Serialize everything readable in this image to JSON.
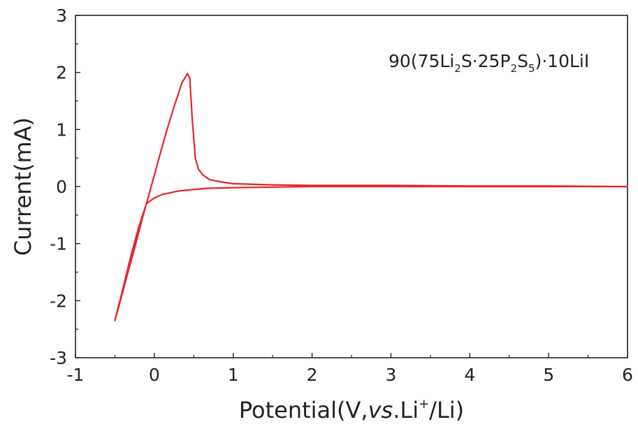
{
  "chart_data": {
    "type": "line",
    "xlabel": {
      "prefix": "Potential(V,",
      "vs": "vs",
      "mid": ".Li",
      "sup": "+",
      "suffix": "/Li)"
    },
    "ylabel": "Current(mA)",
    "xlim": [
      -1,
      6
    ],
    "ylim": [
      -3,
      3
    ],
    "x_ticks": [
      "-1",
      "0",
      "1",
      "2",
      "3",
      "4",
      "5",
      "6"
    ],
    "y_ticks": [
      "-3",
      "-2",
      "-1",
      "0",
      "1",
      "2",
      "3"
    ],
    "grid": false,
    "annotation": {
      "parts": [
        "90(75Li",
        "2",
        "S·25P",
        "2",
        "S",
        "5",
        ")·10LiI"
      ]
    },
    "series": [
      {
        "color": "#e8232a",
        "x": [
          6.0,
          5.0,
          4.0,
          3.0,
          2.0,
          1.5,
          1.0,
          0.7,
          0.5,
          0.3,
          0.1,
          0.0,
          -0.1,
          -0.2,
          -0.3,
          -0.4,
          -0.5,
          -0.45,
          -0.35,
          -0.25,
          -0.15,
          -0.05,
          0.05,
          0.15,
          0.25,
          0.35,
          0.42,
          0.45,
          0.48,
          0.52,
          0.56,
          0.62,
          0.7,
          0.85,
          1.0,
          1.5,
          2.0,
          3.0,
          4.0,
          5.0,
          6.0
        ],
        "y": [
          0.0,
          0.0,
          0.0,
          0.0,
          0.0,
          -0.01,
          -0.02,
          -0.03,
          -0.05,
          -0.08,
          -0.14,
          -0.2,
          -0.3,
          -0.72,
          -1.23,
          -1.8,
          -2.35,
          -2.1,
          -1.58,
          -1.08,
          -0.55,
          -0.05,
          0.45,
          0.95,
          1.4,
          1.82,
          1.98,
          1.9,
          1.2,
          0.5,
          0.3,
          0.2,
          0.12,
          0.08,
          0.05,
          0.03,
          0.02,
          0.02,
          0.01,
          0.01,
          0.0
        ]
      }
    ]
  }
}
